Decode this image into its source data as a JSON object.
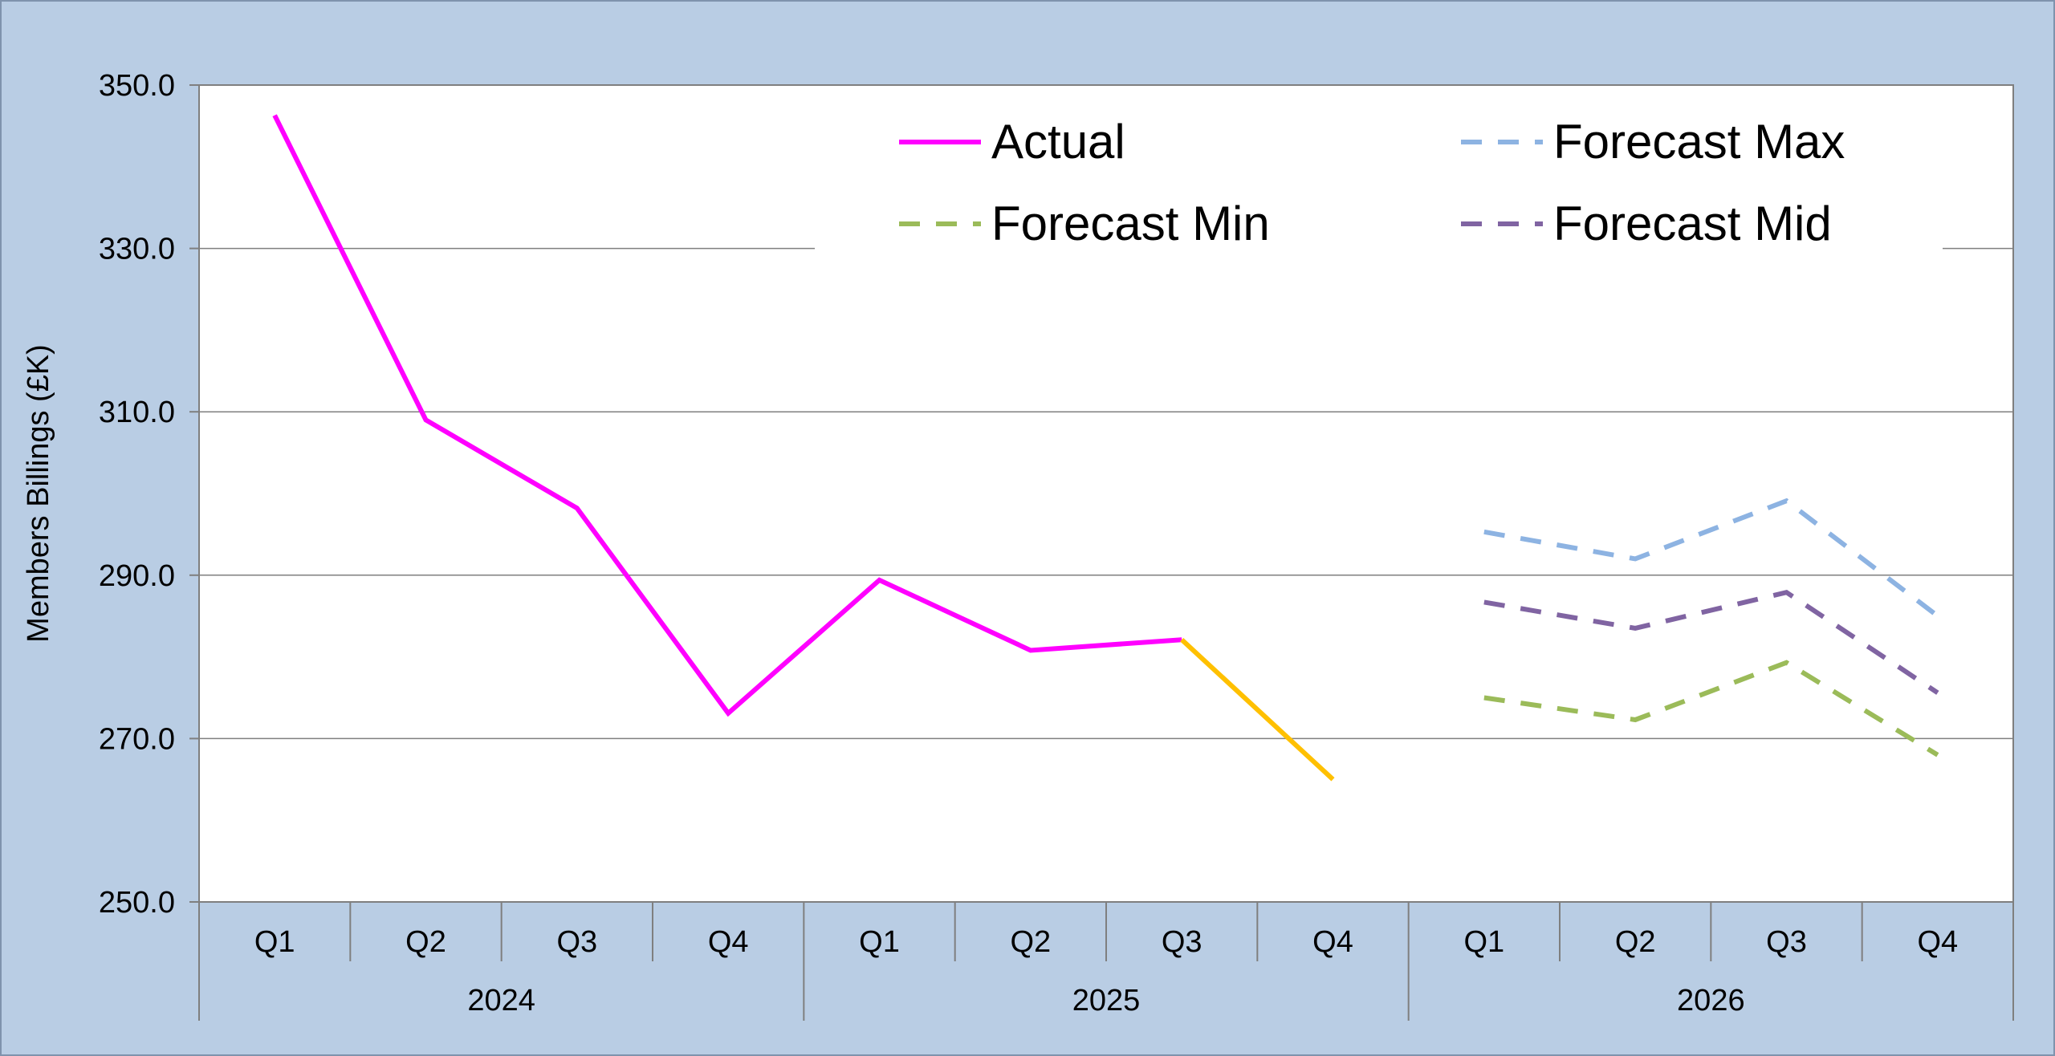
{
  "chart_data": {
    "type": "line",
    "title": "",
    "xlabel": "",
    "ylabel": "Members Billings (£K)",
    "ylim": [
      250,
      350
    ],
    "yticks": [
      "250.0",
      "270.0",
      "290.0",
      "310.0",
      "330.0",
      "350.0"
    ],
    "categories": [
      "Q1",
      "Q2",
      "Q3",
      "Q4",
      "Q1",
      "Q2",
      "Q3",
      "Q4",
      "Q1",
      "Q2",
      "Q3",
      "Q4"
    ],
    "years": [
      "2024",
      "2025",
      "2026"
    ],
    "grid": "horizontal",
    "legend_position": "top-right",
    "series": [
      {
        "name": "Actual",
        "color": "#ff00ff",
        "dash": "solid",
        "values": [
          346.3,
          309.0,
          298.2,
          273.1,
          289.4,
          280.8,
          282.1,
          null,
          null,
          null,
          null,
          null
        ]
      },
      {
        "name": "",
        "color": "#ffc000",
        "dash": "solid",
        "values": [
          null,
          null,
          null,
          null,
          null,
          null,
          282.1,
          265.0,
          null,
          null,
          null,
          null
        ]
      },
      {
        "name": "Forecast Max",
        "color": "#8db3e2",
        "dash": "dashed",
        "values": [
          null,
          null,
          null,
          null,
          null,
          null,
          null,
          null,
          295.3,
          292.0,
          299.1,
          285.0
        ]
      },
      {
        "name": "Forecast Min",
        "color": "#9bbb59",
        "dash": "dashed",
        "values": [
          null,
          null,
          null,
          null,
          null,
          null,
          null,
          null,
          275.0,
          272.3,
          279.3,
          268.0
        ]
      },
      {
        "name": "Forecast Mid",
        "color": "#8064a2",
        "dash": "dashed",
        "values": [
          null,
          null,
          null,
          null,
          null,
          null,
          null,
          null,
          286.7,
          283.5,
          287.9,
          275.6
        ]
      }
    ],
    "legend_order": [
      "Actual",
      "Forecast Max",
      "Forecast Min",
      "Forecast Mid"
    ]
  }
}
